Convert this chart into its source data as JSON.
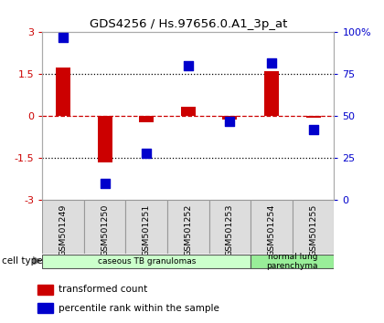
{
  "title": "GDS4256 / Hs.97656.0.A1_3p_at",
  "samples": [
    "GSM501249",
    "GSM501250",
    "GSM501251",
    "GSM501252",
    "GSM501253",
    "GSM501254",
    "GSM501255"
  ],
  "transformed_count": [
    1.75,
    -1.65,
    -0.2,
    0.35,
    -0.1,
    1.6,
    -0.05
  ],
  "percentile_rank": [
    97,
    10,
    28,
    80,
    47,
    82,
    42
  ],
  "ylim_left": [
    -3,
    3
  ],
  "ylim_right": [
    0,
    100
  ],
  "yticks_left": [
    -3,
    -1.5,
    0,
    1.5,
    3
  ],
  "yticks_right": [
    0,
    25,
    50,
    75,
    100
  ],
  "yticklabels_right": [
    "0",
    "25",
    "50",
    "75",
    "100%"
  ],
  "hlines_dotted": [
    -1.5,
    1.5
  ],
  "hline_dashed": 0,
  "bar_color": "#cc0000",
  "scatter_color": "#0000cc",
  "bar_width": 0.35,
  "scatter_size": 55,
  "cell_type_groups": [
    {
      "label": "caseous TB granulomas",
      "n": 5,
      "color": "#ccffcc"
    },
    {
      "label": "normal lung\nparenchyma",
      "n": 2,
      "color": "#99ee99"
    }
  ],
  "cell_type_label": "cell type",
  "legend_items": [
    {
      "color": "#cc0000",
      "label": "transformed count"
    },
    {
      "color": "#0000cc",
      "label": "percentile rank within the sample"
    }
  ],
  "tick_label_color_left": "#cc0000",
  "tick_label_color_right": "#0000cc",
  "bg_color": "#ffffff",
  "spine_color": "#aaaaaa"
}
